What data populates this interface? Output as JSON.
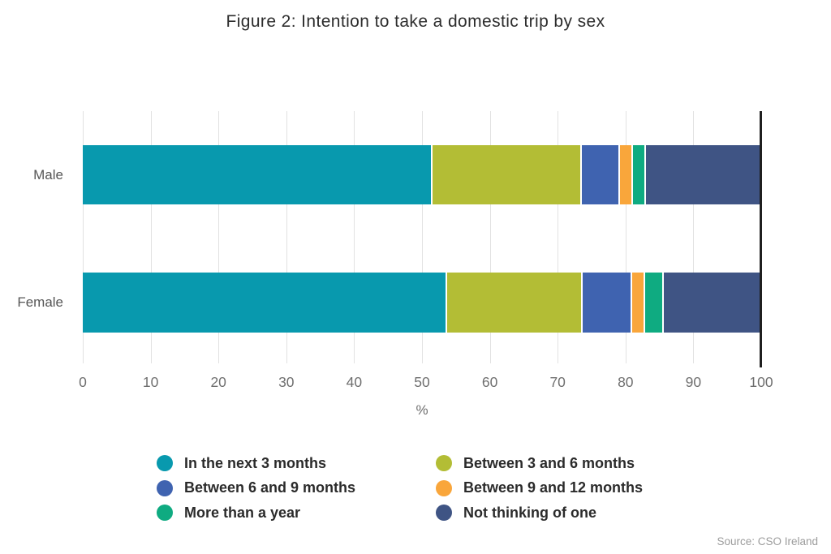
{
  "title": "Figure 2: Intention to take a domestic trip by sex",
  "source": "Source: CSO Ireland",
  "chart_data": {
    "type": "bar",
    "stacked": true,
    "orientation": "horizontal",
    "title": "Figure 2: Intention to take a domestic trip by sex",
    "categories": [
      "Male",
      "Female"
    ],
    "series": [
      {
        "name": "In the next 3 months",
        "color": "#0899ae",
        "values": [
          51.4,
          53.6
        ]
      },
      {
        "name": "Between 3 and 6 months",
        "color": "#b3bd35",
        "values": [
          22.0,
          20.0
        ]
      },
      {
        "name": "Between 6 and 9 months",
        "color": "#3f63b0",
        "values": [
          5.7,
          7.3
        ]
      },
      {
        "name": "Between 9 and 12 months",
        "color": "#f9a63b",
        "values": [
          1.9,
          1.9
        ]
      },
      {
        "name": "More than a year",
        "color": "#0fab81",
        "values": [
          1.9,
          2.7
        ]
      },
      {
        "name": "Not thinking of one",
        "color": "#3f5484",
        "values": [
          17.1,
          14.5
        ]
      }
    ],
    "xlabel": "%",
    "xlim": [
      0,
      100
    ],
    "xticks": [
      0,
      10,
      20,
      30,
      40,
      50,
      60,
      70,
      80,
      90,
      100
    ],
    "grid": true,
    "axis_end_line_at": 100,
    "legend_position": "bottom",
    "legend_columns": 2
  },
  "layout_colors": {
    "gridline": "#e2e2e2",
    "axis_end_line": "#1f1f1f"
  }
}
